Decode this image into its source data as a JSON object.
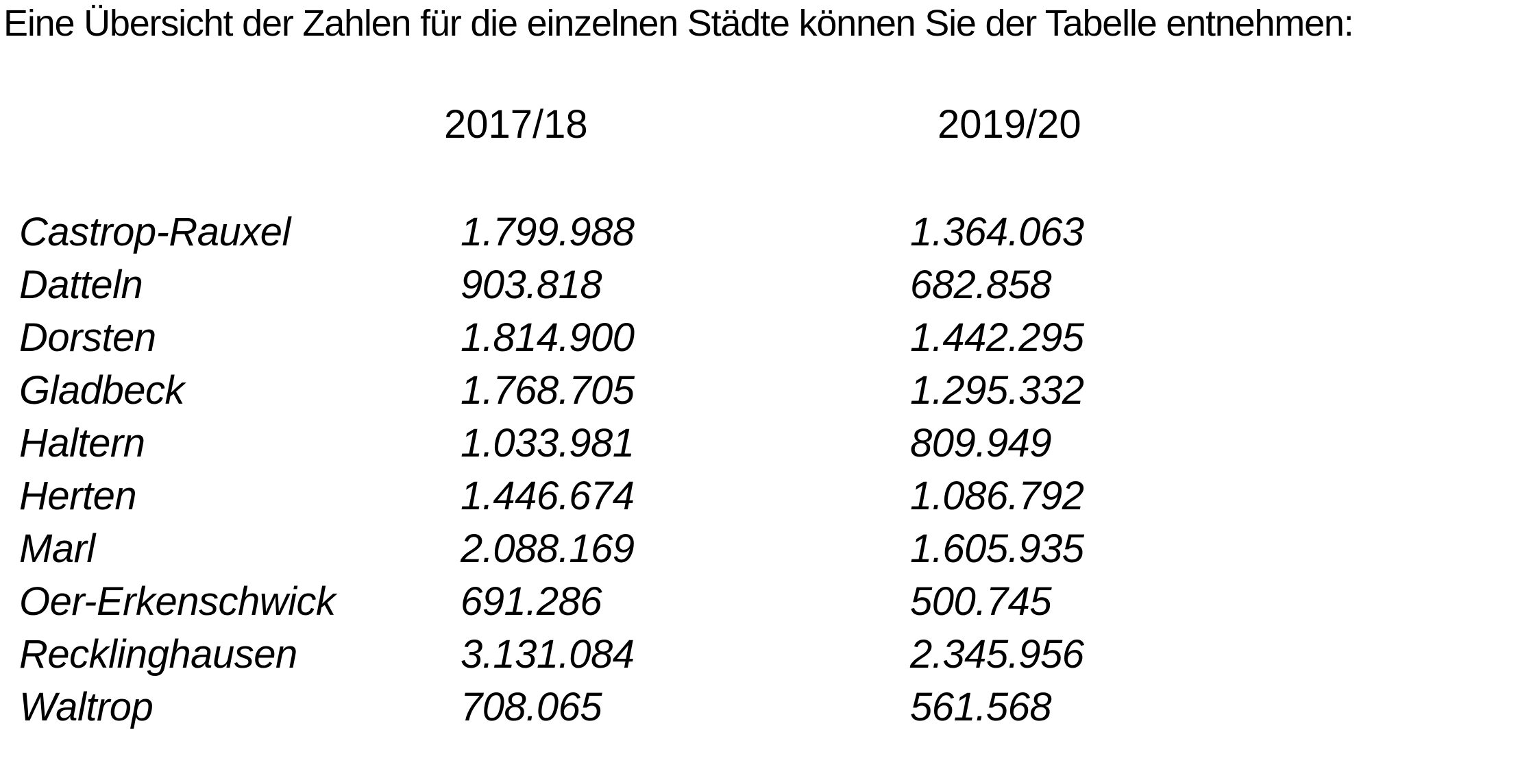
{
  "intro": {
    "text": "Eine Übersicht der Zahlen für die einzelnen Städte können Sie der Tabelle entnehmen:"
  },
  "table": {
    "column_headers": [
      "2017/18",
      "2019/20"
    ],
    "rows": [
      {
        "city": "Castrop-Rauxel",
        "v2017_18": "1.799.988",
        "v2019_20": "1.364.063"
      },
      {
        "city": "Datteln",
        "v2017_18": "903.818",
        "v2019_20": "682.858"
      },
      {
        "city": "Dorsten",
        "v2017_18": "1.814.900",
        "v2019_20": "1.442.295"
      },
      {
        "city": "Gladbeck",
        "v2017_18": "1.768.705",
        "v2019_20": "1.295.332"
      },
      {
        "city": "Haltern",
        "v2017_18": "1.033.981",
        "v2019_20": "809.949"
      },
      {
        "city": "Herten",
        "v2017_18": "1.446.674",
        "v2019_20": "1.086.792"
      },
      {
        "city": "Marl",
        "v2017_18": "2.088.169",
        "v2019_20": "1.605.935"
      },
      {
        "city": "Oer-Erkenschwick",
        "v2017_18": "691.286",
        "v2019_20": "500.745"
      },
      {
        "city": "Recklinghausen",
        "v2017_18": "3.131.084",
        "v2019_20": "2.345.956"
      },
      {
        "city": "Waltrop",
        "v2017_18": "708.065",
        "v2019_20": "561.568"
      }
    ],
    "text_color": "#000000",
    "background_color": "#ffffff"
  }
}
